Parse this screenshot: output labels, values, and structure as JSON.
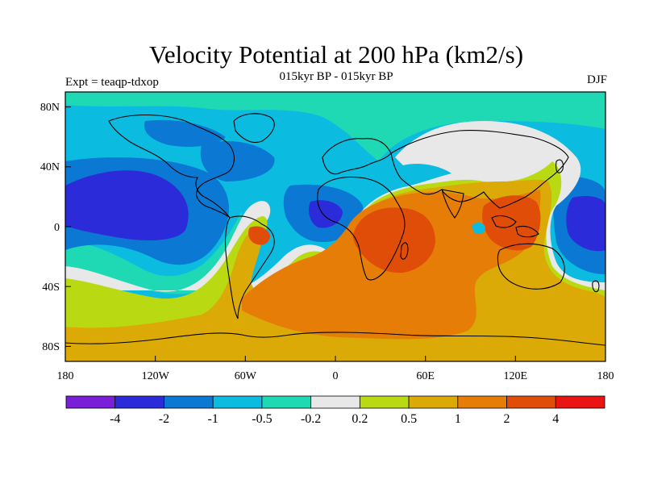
{
  "title": "Velocity Potential at 200 hPa (km2/s)",
  "subtitle": "015kyr BP - 015kyr BP",
  "left_label": "Expt = teaqp-tdxop",
  "right_label": "DJF",
  "map": {
    "projection": "cylindrical-equidistant",
    "lon_range": [
      -180,
      180
    ],
    "lat_range": [
      -90,
      90
    ],
    "lon_ticks": [
      "180",
      "120W",
      "60W",
      "0",
      "60E",
      "120E",
      "180"
    ],
    "lat_ticks": [
      "80N",
      "40N",
      "0",
      "40S",
      "80S"
    ],
    "coastlines": "continental outlines overlaid in black"
  },
  "colorbar": {
    "colors": [
      "#7a1fd8",
      "#2c2bd9",
      "#0b78d4",
      "#0cbbe0",
      "#1ed9b4",
      "#e8e8e8",
      "#b9da12",
      "#dcaa06",
      "#e67d06",
      "#e04d08",
      "#ea1414"
    ],
    "labels": [
      "-4",
      "-2",
      "-1",
      "-0.5",
      "-0.2",
      "0.2",
      "0.5",
      "1",
      "2",
      "4"
    ]
  },
  "field_colors": {
    "negative_strong": "#2c2bd9",
    "negative_medium": "#0b78d4",
    "negative_weak": "#0cbbe0",
    "negative_small": "#1ed9b4",
    "near_zero": "#e8e8e8",
    "positive_small": "#b9da12",
    "positive_weak": "#dcaa06",
    "positive_medium": "#e67d06",
    "positive_strong": "#e04d08"
  }
}
